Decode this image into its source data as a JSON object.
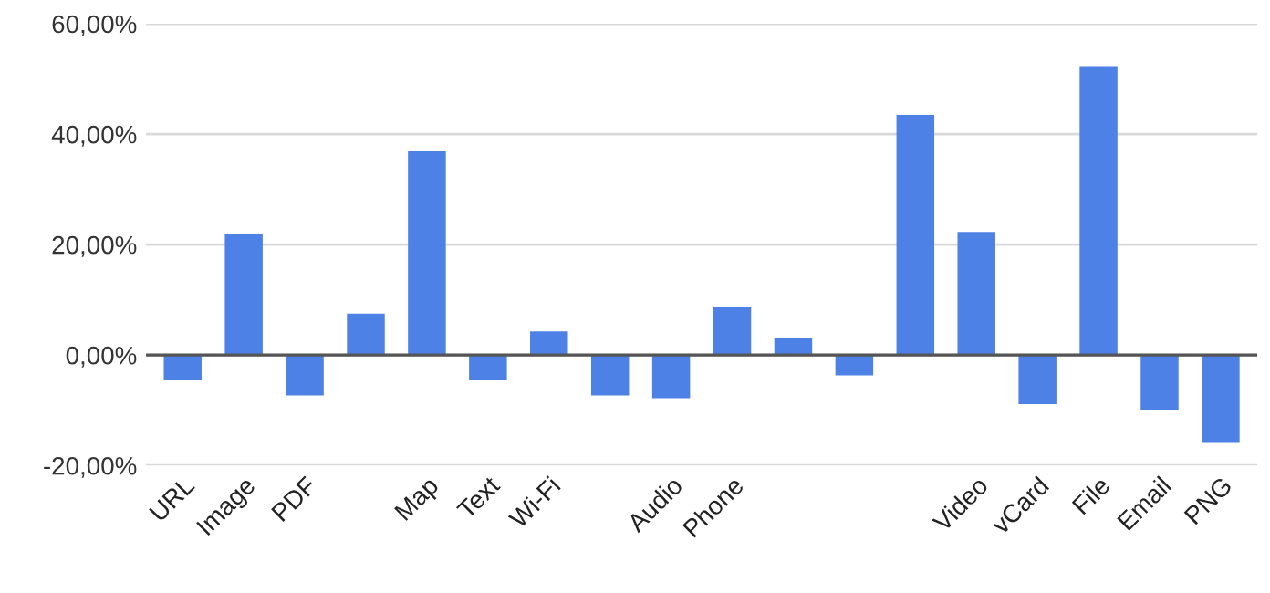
{
  "chart_data": {
    "type": "bar",
    "categories": [
      "URL",
      "Image",
      "PDF",
      null,
      "Map",
      "Text",
      "Wi-Fi",
      null,
      "Audio",
      "Phone",
      null,
      null,
      null,
      "Video",
      "vCard",
      "File",
      "Email",
      "PNG"
    ],
    "values": [
      -4.5,
      22,
      -7.3,
      7.5,
      37,
      -4.5,
      4.3,
      -7.3,
      -7.8,
      8.7,
      3,
      -3.7,
      43.5,
      22.3,
      -8.9,
      52.3,
      -9.9,
      -15.9
    ],
    "color": "#4e81e6",
    "ylim": [
      -20,
      60
    ],
    "yticks": [
      {
        "value": -20,
        "label": "-20,00%"
      },
      {
        "value": 0,
        "label": "0,00%"
      },
      {
        "value": 20,
        "label": "20,00%"
      },
      {
        "value": 40,
        "label": "40,00%"
      },
      {
        "value": 60,
        "label": "60,00%"
      }
    ],
    "grid": "y",
    "ref_lines": [
      {
        "axis": "y",
        "value": 0,
        "color": "#555555"
      }
    ]
  }
}
